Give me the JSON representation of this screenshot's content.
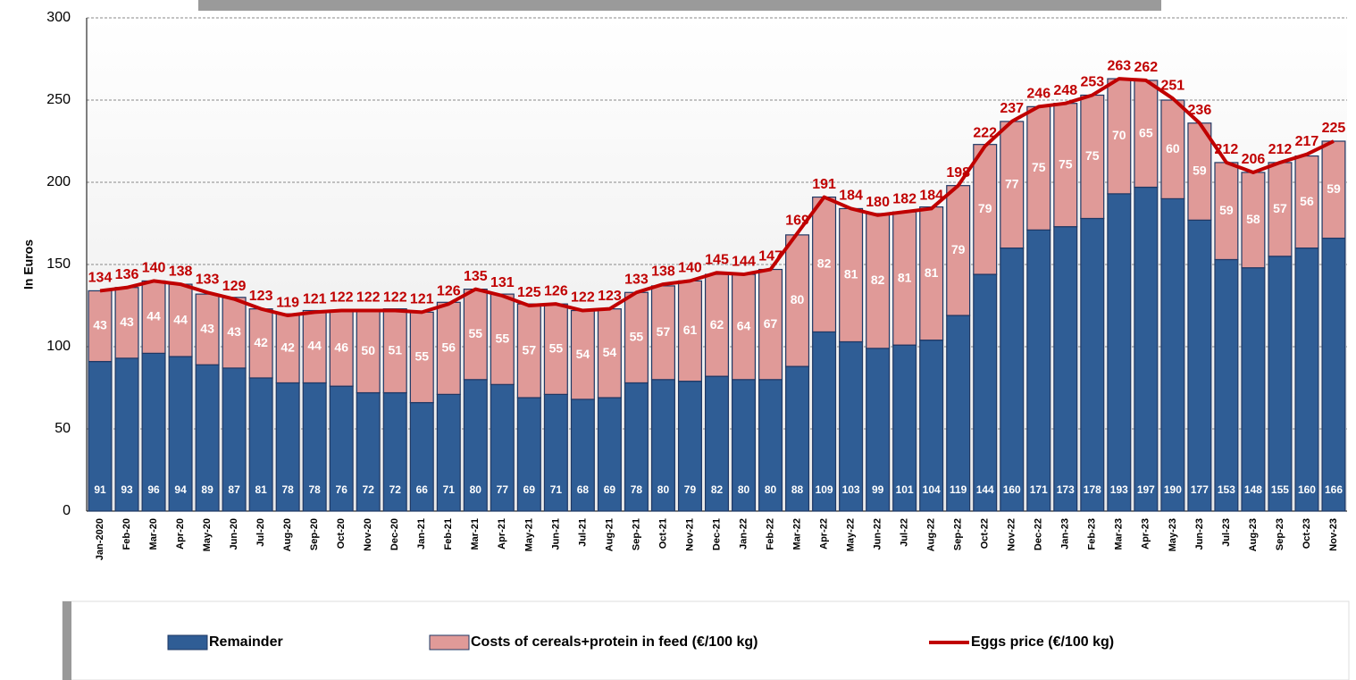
{
  "chart_data": {
    "type": "stacked_bar_line",
    "y_axis_label": "In Euros",
    "categories": [
      "Jan-2020",
      "Feb-20",
      "Mar-20",
      "Apr-20",
      "May-20",
      "Jun-20",
      "Jul-20",
      "Aug-20",
      "Sep-20",
      "Oct-20",
      "Nov-20",
      "Dec-20",
      "Jan-21",
      "Feb-21",
      "Mar-21",
      "Apr-21",
      "May-21",
      "Jun-21",
      "Jul-21",
      "Aug-21",
      "Sep-21",
      "Oct-21",
      "Nov-21",
      "Dec-21",
      "Jan-22",
      "Feb-22",
      "Mar-22",
      "Apr-22",
      "May-22",
      "Jun-22",
      "Jul-22",
      "Aug-22",
      "Sep-22",
      "Oct-22",
      "Nov-22",
      "Dec-22",
      "Jan-23",
      "Feb-23",
      "Mar-23",
      "Apr-23",
      "May-23",
      "Jun-23",
      "Jul-23",
      "Aug-23",
      "Sep-23",
      "Oct-23",
      "Nov-23"
    ],
    "series": [
      {
        "name": "Remainder",
        "kind": "bar",
        "color": "#2f5d95",
        "values": [
          91,
          93,
          96,
          94,
          89,
          87,
          81,
          78,
          78,
          76,
          72,
          72,
          66,
          71,
          80,
          77,
          69,
          71,
          68,
          69,
          78,
          80,
          79,
          82,
          80,
          80,
          88,
          109,
          103,
          99,
          101,
          104,
          119,
          144,
          160,
          171,
          173,
          178,
          193,
          197,
          190,
          177,
          153,
          148,
          155,
          160,
          166
        ]
      },
      {
        "name": "Costs of cereals+protein in feed (€/100 kg)",
        "kind": "bar",
        "color": "#e09a98",
        "values": [
          43,
          43,
          44,
          44,
          43,
          43,
          42,
          42,
          44,
          46,
          50,
          51,
          55,
          56,
          55,
          55,
          57,
          55,
          54,
          54,
          55,
          57,
          61,
          62,
          64,
          67,
          80,
          82,
          81,
          82,
          81,
          81,
          79,
          79,
          77,
          75,
          75,
          75,
          70,
          65,
          60,
          59,
          59,
          58,
          57,
          56,
          59
        ]
      },
      {
        "name": "Eggs price (€/100 kg)",
        "kind": "line",
        "color": "#c00000",
        "values": [
          134,
          136,
          140,
          138,
          133,
          129,
          123,
          119,
          121,
          122,
          122,
          122,
          121,
          126,
          135,
          131,
          125,
          126,
          122,
          123,
          133,
          138,
          140,
          145,
          144,
          147,
          169,
          191,
          184,
          180,
          182,
          184,
          198,
          222,
          237,
          246,
          248,
          253,
          263,
          262,
          251,
          236,
          212,
          206,
          212,
          217,
          225
        ]
      }
    ],
    "ylim": [
      0,
      300
    ],
    "yticks": [
      0,
      50,
      100,
      150,
      200,
      250,
      300
    ],
    "grid": true,
    "legend_position": "bottom"
  }
}
